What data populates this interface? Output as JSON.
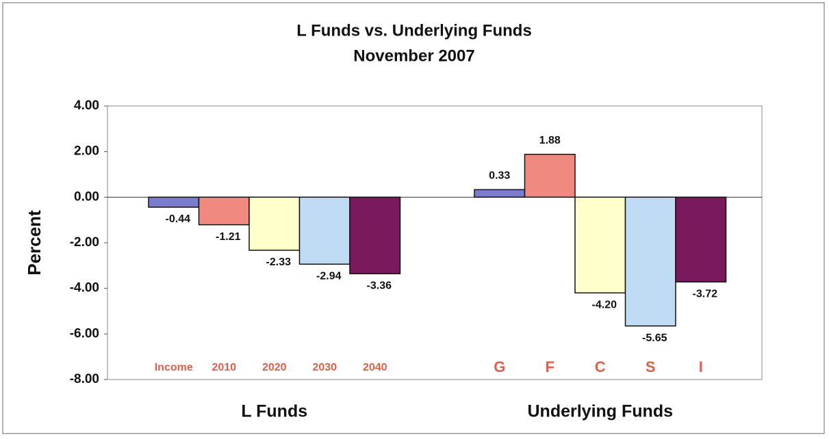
{
  "chart_data": {
    "type": "bar",
    "title": "L Funds vs. Underlying Funds",
    "subtitle": "November 2007",
    "ylabel": "Percent",
    "ylim": [
      -8,
      4
    ],
    "yticks": [
      {
        "value": -8,
        "label": "-8.00"
      },
      {
        "value": -6,
        "label": "-6.00"
      },
      {
        "value": -4,
        "label": "-4.00"
      },
      {
        "value": -2,
        "label": "-2.00"
      },
      {
        "value": 0,
        "label": "0.00"
      },
      {
        "value": 2,
        "label": "2.00"
      },
      {
        "value": 4,
        "label": "4.00"
      }
    ],
    "grid": false,
    "colors": [
      "#7b7bd0",
      "#f08a80",
      "#ffffcc",
      "#c0dcf4",
      "#7a1a5c"
    ],
    "groups": [
      {
        "name": "L Funds",
        "categories": [
          "Income",
          "2010",
          "2020",
          "2030",
          "2040"
        ],
        "values": [
          -0.44,
          -1.21,
          -2.33,
          -2.94,
          -3.36
        ],
        "value_labels": [
          "-0.44",
          "-1.21",
          "-2.33",
          "-2.94",
          "-3.36"
        ]
      },
      {
        "name": "Underlying Funds",
        "categories": [
          "G",
          "F",
          "C",
          "S",
          "I"
        ],
        "values": [
          0.33,
          1.88,
          -4.2,
          -5.65,
          -3.72
        ],
        "value_labels": [
          "0.33",
          "1.88",
          "-4.20",
          "-5.65",
          "-3.72"
        ]
      }
    ]
  }
}
